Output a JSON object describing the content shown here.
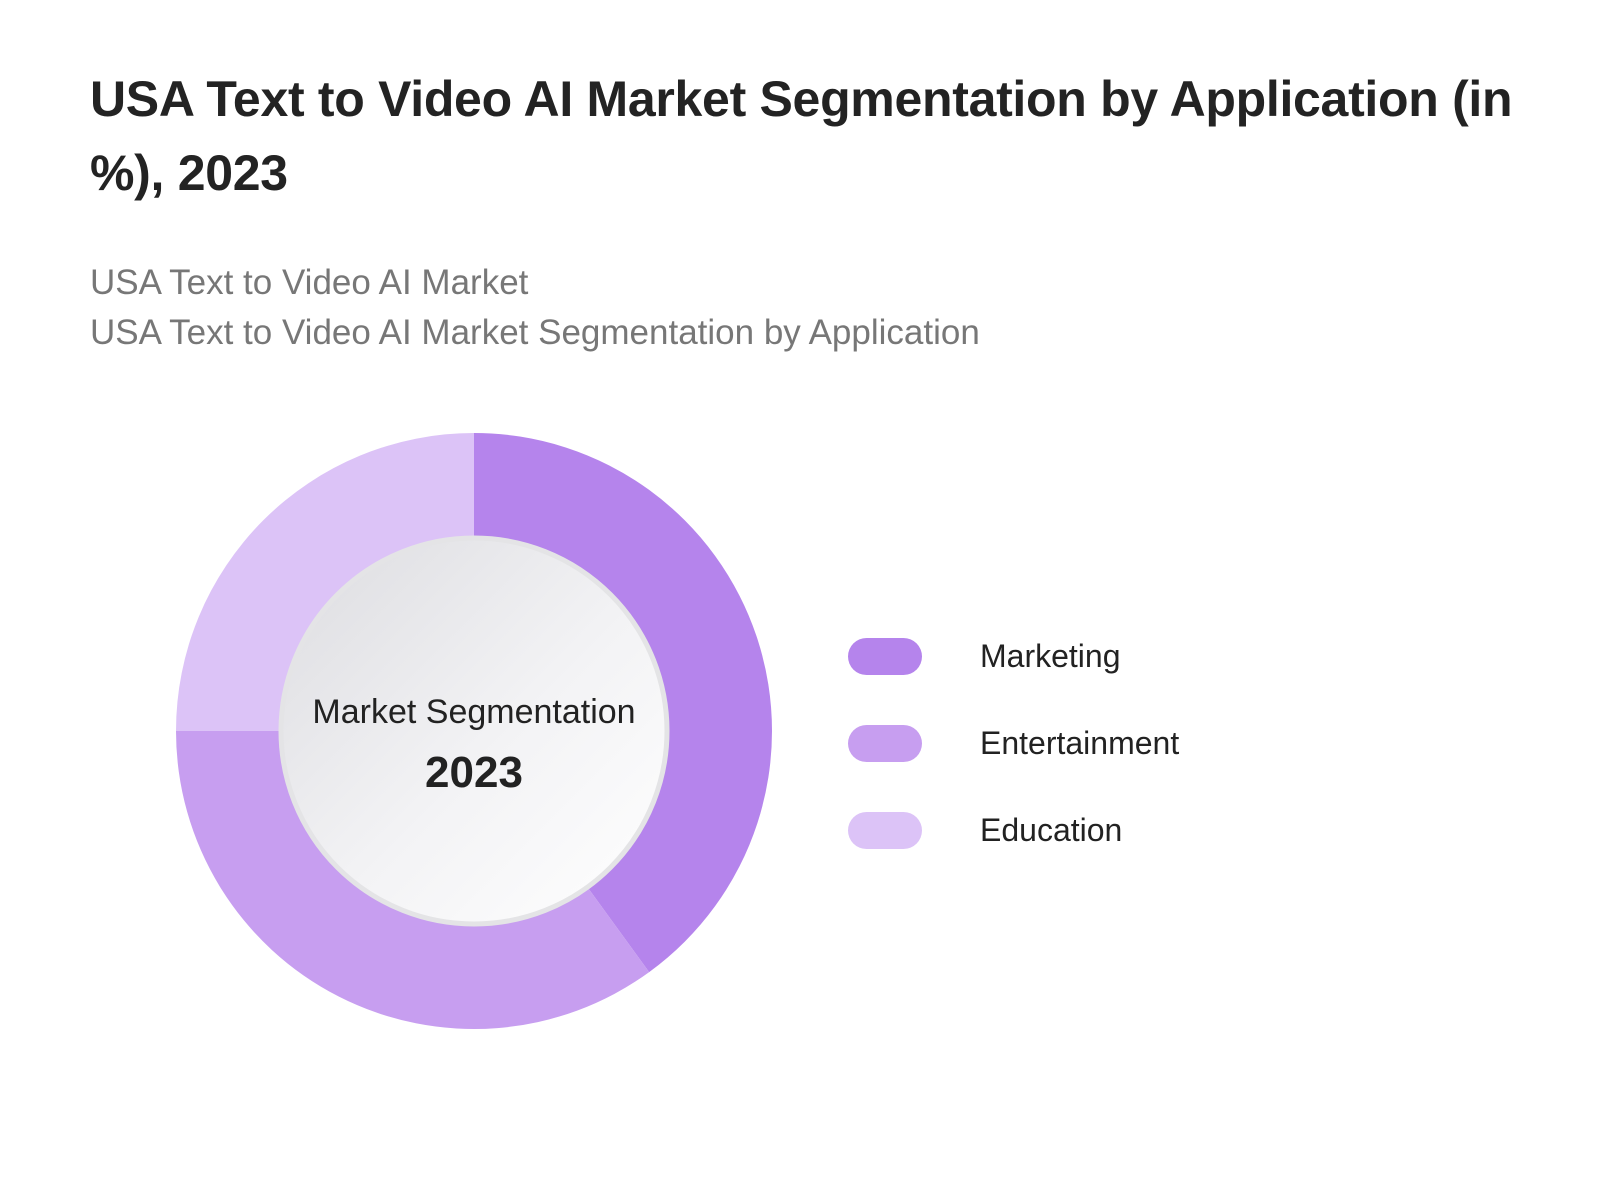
{
  "title": "USA Text to Video AI Market Segmentation by Application (in %), 2023",
  "subtitle": {
    "line1": "USA Text to Video AI Market",
    "line2": "USA Text to Video AI Market Segmentation by Application"
  },
  "chart_data": {
    "type": "pie",
    "style": "donut",
    "center_label": "Market Segmentation",
    "center_value": "2023",
    "legend_position": "right",
    "slices": [
      {
        "label": "Marketing",
        "value": 40,
        "color": "#b584ec"
      },
      {
        "label": "Entertainment",
        "value": 35,
        "color": "#c79ef0"
      },
      {
        "label": "Education",
        "value": 25,
        "color": "#dcc3f7"
      }
    ]
  }
}
